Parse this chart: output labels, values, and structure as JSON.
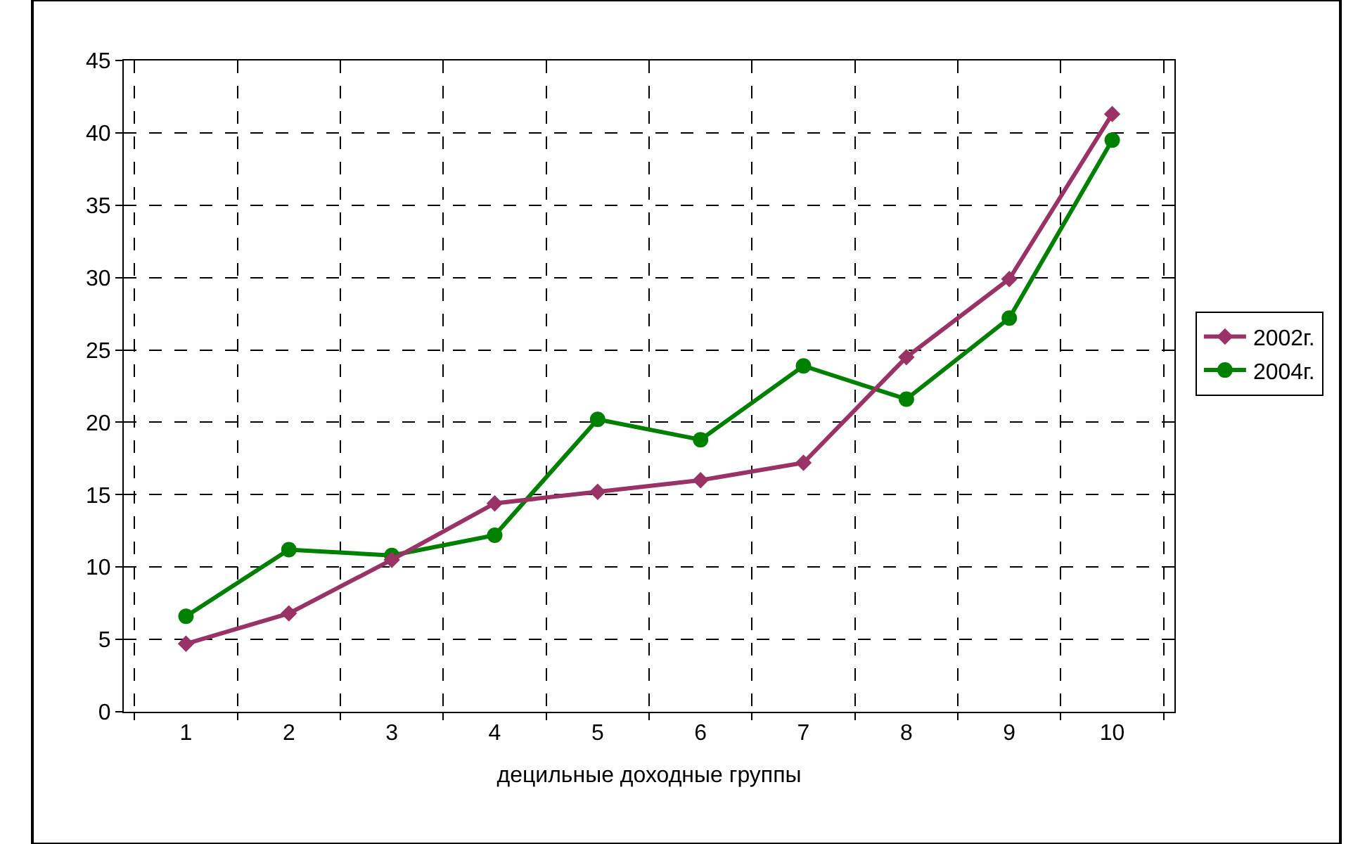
{
  "chart_data": {
    "type": "line",
    "xlabel": "децильные доходные группы",
    "categories": [
      "1",
      "2",
      "3",
      "4",
      "5",
      "6",
      "7",
      "8",
      "9",
      "10"
    ],
    "series": [
      {
        "name": "2002г.",
        "color": "#993366",
        "marker": "diamond",
        "values": [
          4.7,
          6.8,
          10.5,
          14.4,
          15.2,
          16.0,
          17.2,
          24.5,
          29.9,
          41.3
        ]
      },
      {
        "name": "2004г.",
        "color": "#008000",
        "marker": "circle",
        "values": [
          6.6,
          11.2,
          10.8,
          12.2,
          20.2,
          18.8,
          23.9,
          21.6,
          27.2,
          39.5
        ]
      }
    ],
    "ylim": [
      0,
      45
    ],
    "yticks": [
      0,
      5,
      10,
      15,
      20,
      25,
      30,
      35,
      40,
      45
    ],
    "grid": true,
    "legend": "right",
    "line_style": "solid"
  }
}
